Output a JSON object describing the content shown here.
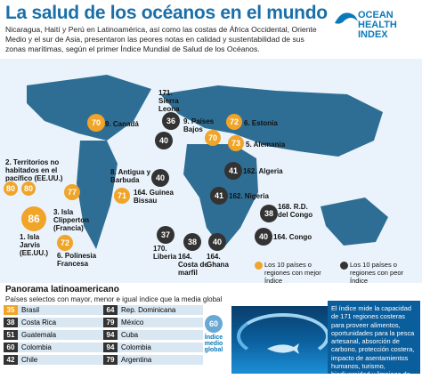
{
  "title": "La salud de los océanos en el mundo",
  "intro": "Nicaragua, Haití y Perú en Latinoamérica, así como las costas de África Occidental, Oriente Medio y el sur de Asia, presentaron las peores notas en calidad y sustentabilidad de sus zonas marítimas, según el primer Índice Mundial de Salud de los Océanos.",
  "logo": {
    "line1": "OCEAN",
    "line2": "HEALTH",
    "line3": "INDEX"
  },
  "map": {
    "labels": {
      "canada": "9. Canadá",
      "territorios": "2. Territorios no habitados en el pacífico (EE.UU.)",
      "jarvis": "1. Isla Jarvis (EE.UU.)",
      "clipperton": "3. Isla Clipperton (Francia)",
      "polinesia": "6. Polinesia Francesa",
      "antigua": "8. Antigua y Barbuda",
      "sierra": "171. Sierra Leona",
      "guinea": "164. Guinea Bissau",
      "liberia": "170. Liberia",
      "costa": "164. Costa de marfil",
      "ghana": "164. Ghana",
      "algeria": "162. Algeria",
      "nigeria": "162. Nigeria",
      "congo_rd": "168. R.D. del Congo",
      "congo": "164. Congo",
      "bajos": "9. Países Bajos",
      "estonia": "6. Estonia",
      "alemania": "5. Alemania"
    },
    "scores": {
      "canada": "70",
      "territorios": "80",
      "territorios2": "80",
      "jarvis": "86",
      "clipperton": "77",
      "polinesia": "72",
      "antigua": "71",
      "sierra": "36",
      "guinea": "40",
      "liberia": "37",
      "costa": "38",
      "ghana": "40",
      "algeria": "41",
      "nigeria": "41",
      "congo_rd": "38",
      "congo": "40",
      "bajos": "70",
      "estonia": "72",
      "alemania": "73",
      "extra": "40"
    },
    "legend": {
      "best": "Los 10 países o regiones con mejor Índice",
      "worst": "Los 10 países o regiones con peor Índice"
    }
  },
  "panorama": {
    "title": "Panorama latinoamericano",
    "subtitle": "Países selectos con mayor, menor e igual índice que la media global",
    "rows": [
      [
        {
          "score": "35",
          "name": "Brasil",
          "color": "#f0a428"
        },
        {
          "score": "64",
          "name": "Rep. Dominicana",
          "color": "#333333"
        }
      ],
      [
        {
          "score": "38",
          "name": "Costa Rica",
          "color": "#333333"
        },
        {
          "score": "79",
          "name": "México",
          "color": "#333333"
        }
      ],
      [
        {
          "score": "51",
          "name": "Guatemala",
          "color": "#333333"
        },
        {
          "score": "94",
          "name": "Cuba",
          "color": "#333333"
        }
      ],
      [
        {
          "score": "60",
          "name": "Colombia",
          "color": "#333333"
        },
        {
          "score": "94",
          "name": "Colombia",
          "color": "#333333"
        }
      ],
      [
        {
          "score": "42",
          "name": "Chile",
          "color": "#333333"
        },
        {
          "score": "79",
          "name": "Argentina",
          "color": "#333333"
        }
      ]
    ],
    "avg_value": "60",
    "avg_label": "Índice medio global"
  },
  "info": "El índice mide la capacidad de 171 regiones costeras para proveer alimentos, oportunidades para la pesca artesanal, absorción de carbono, protección costera, impacto de asentamientos humanos, turismo, biodiversidad y limpieza de las aguas."
}
